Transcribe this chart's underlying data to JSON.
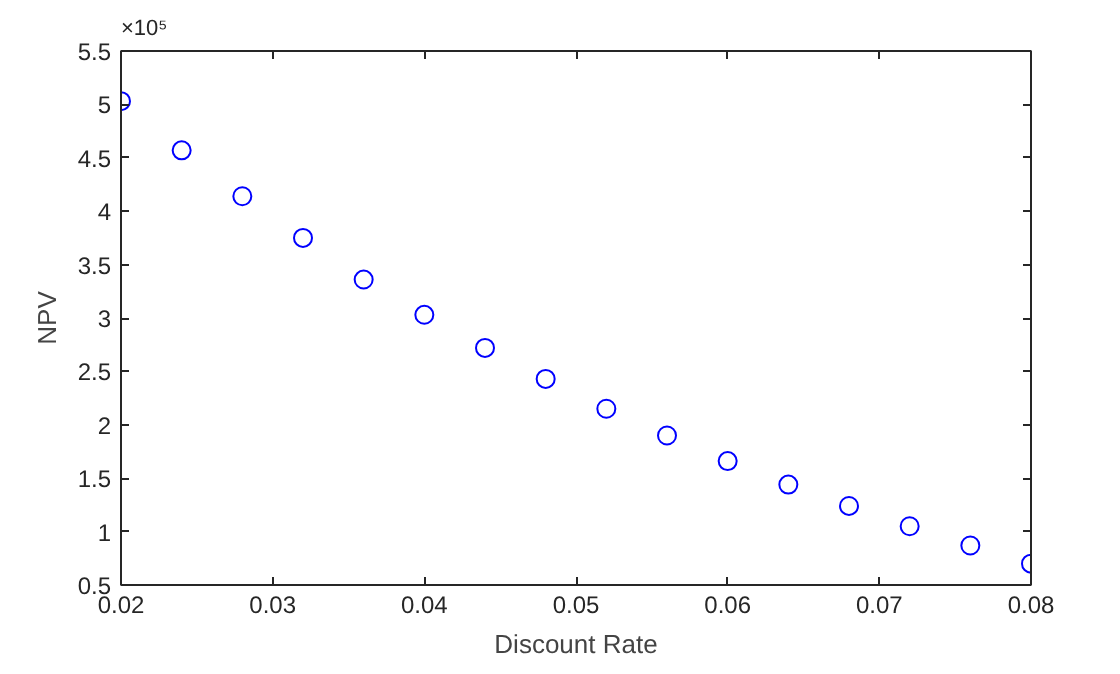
{
  "chart_data": {
    "type": "scatter",
    "xlabel": "Discount Rate",
    "ylabel": "NPV",
    "annotations": [
      "×10⁵"
    ],
    "x": [
      0.02,
      0.024,
      0.028,
      0.032,
      0.036,
      0.04,
      0.044,
      0.048,
      0.052,
      0.056,
      0.06,
      0.064,
      0.068,
      0.072,
      0.076,
      0.08
    ],
    "series": [
      {
        "color": "#0000ff",
        "values": [
          5.03,
          4.57,
          4.14,
          3.75,
          3.36,
          3.03,
          2.72,
          2.43,
          2.15,
          1.9,
          1.66,
          1.44,
          1.24,
          1.05,
          0.87,
          0.7
        ]
      }
    ],
    "marker": "circle",
    "xlim": [
      0.02,
      0.08
    ],
    "xticks": [
      0.02,
      0.03,
      0.04,
      0.05,
      0.06,
      0.07,
      0.08
    ],
    "ylim": [
      0.5,
      5.5
    ],
    "yticks": [
      0.5,
      1,
      1.5,
      2,
      2.5,
      3,
      3.5,
      4,
      4.5,
      5,
      5.5
    ]
  }
}
